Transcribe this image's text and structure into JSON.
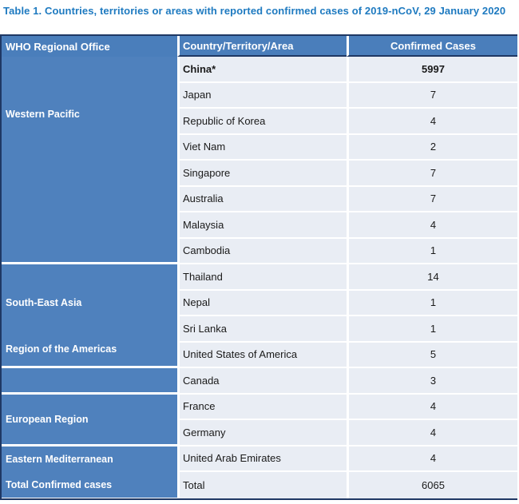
{
  "title": "Table 1. Countries, territories or areas with reported confirmed cases of 2019-nCoV, 29 January 2020",
  "colors": {
    "title_blue": "#1e7ac0",
    "header_blue": "#4a7ebb",
    "region_blue": "#4f81bd",
    "cell_light_blue": "#e9edf4",
    "border_navy": "#1f3864",
    "header_text": "#ffffff"
  },
  "table": {
    "headers": {
      "region": "WHO Regional Office",
      "country": "Country/Territory/Area",
      "cases": "Confirmed Cases"
    },
    "blocks": [
      {
        "labels": [
          "Western Pacific"
        ],
        "rows": [
          {
            "country": "China*",
            "cases": "5997",
            "bold": true
          },
          {
            "country": "Japan",
            "cases": "7"
          },
          {
            "country": "Republic of Korea",
            "cases": "4"
          },
          {
            "country": "Viet Nam",
            "cases": "2"
          },
          {
            "country": "Singapore",
            "cases": "7"
          },
          {
            "country": "Australia",
            "cases": "7"
          },
          {
            "country": "Malaysia",
            "cases": "4"
          },
          {
            "country": "Cambodia",
            "cases": "1"
          }
        ]
      },
      {
        "labels": [
          "South-East Asia",
          "Region of the Americas"
        ],
        "rows": [
          {
            "country": "Thailand",
            "cases": "14"
          },
          {
            "country": "Nepal",
            "cases": "1"
          },
          {
            "country": "Sri Lanka",
            "cases": "1"
          },
          {
            "country": "United States of America",
            "cases": "5"
          }
        ]
      },
      {
        "labels": [],
        "rows": [
          {
            "country": "Canada",
            "cases": "3"
          }
        ]
      },
      {
        "labels": [
          "European Region"
        ],
        "rows": [
          {
            "country": "France",
            "cases": "4"
          },
          {
            "country": "Germany",
            "cases": "4"
          }
        ]
      },
      {
        "labels": [
          "Eastern Mediterranean",
          "Total Confirmed cases"
        ],
        "rows": [
          {
            "country": "United Arab Emirates",
            "cases": "4"
          },
          {
            "country": "Total",
            "cases": "6065"
          }
        ]
      }
    ]
  }
}
